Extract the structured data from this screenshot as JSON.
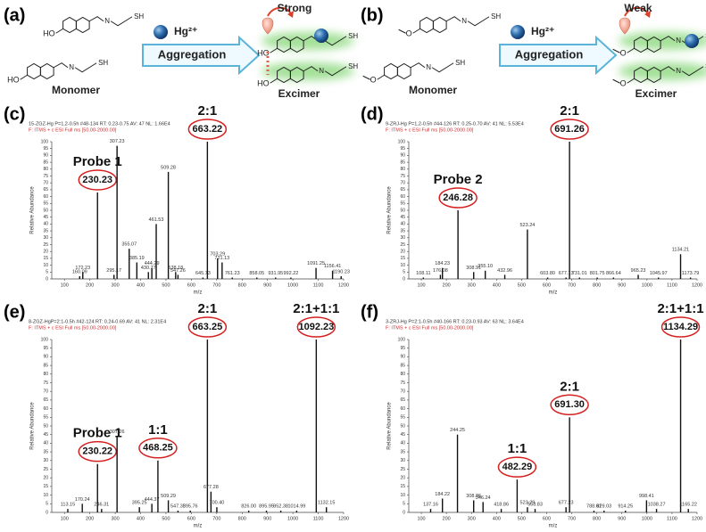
{
  "schemes": [
    {
      "label": "(a)",
      "substituent": "HO",
      "imine": "N",
      "thiol": "SH",
      "reagent": "Hg²⁺",
      "process": "Aggregation",
      "left": "Monomer",
      "right": "Excimer",
      "strength": "Strong"
    },
    {
      "label": "(b)",
      "substituent": "O",
      "imine": "N",
      "thiol": "SH",
      "reagent": "Hg²⁺",
      "process": "Aggregation",
      "left": "Monomer",
      "right": "Excimer",
      "strength": "Weak"
    }
  ],
  "chart_data": [
    {
      "type": "bar",
      "panel": "(c)",
      "header": [
        "15-ZGZ-Hg P=1,2-0.5h #48-134  RT: 0.23-0.75  AV: 47  NL: 1.66E4",
        "F: ITMS + c ESI Full ms [50.00-2000.00]"
      ],
      "x_label": "m/z",
      "y_label": "Relative Abundance",
      "color": "#111111",
      "highlight_color": "#d62020",
      "x": [
        160.09,
        172.23,
        230.23,
        295.17,
        307.23,
        355.07,
        385.19,
        430.77,
        444.29,
        461.53,
        509.28,
        538.18,
        547.26,
        645.73,
        663.22,
        703.29,
        721.13,
        761.23,
        858.05,
        931.95,
        992.22,
        1091.25,
        1156.41,
        1190.23
      ],
      "x_labels": [
        "160.09",
        "172.23",
        "230.23",
        "295.17",
        "307.23",
        "355.07",
        "385.19",
        "430.77",
        "444.29",
        "461.53",
        "509.28",
        "538.18",
        "547.26",
        "645.73",
        "663.22",
        "703.29",
        "721.13",
        "761.23",
        "858.05",
        "931.95",
        "992.22",
        "1091.25",
        "1156.41",
        "1190.23"
      ],
      "values": [
        2,
        5,
        63,
        3,
        97,
        22,
        12,
        5,
        8,
        40,
        78,
        5,
        3,
        1,
        100,
        15,
        12,
        1,
        1,
        1,
        1,
        8,
        6,
        2
      ],
      "notes": [
        null,
        null,
        "Probe 1",
        null,
        null,
        null,
        null,
        null,
        null,
        null,
        null,
        null,
        null,
        null,
        "2:1",
        null,
        null,
        null,
        null,
        null,
        null,
        null,
        null,
        null
      ],
      "xlim": [
        50,
        1200
      ],
      "ylim": [
        0,
        100
      ],
      "xticks": [
        100,
        200,
        300,
        400,
        500,
        600,
        700,
        800,
        900,
        1000,
        1100,
        1200
      ],
      "yticks": [
        0,
        5,
        10,
        15,
        20,
        25,
        30,
        35,
        40,
        45,
        50,
        55,
        60,
        65,
        70,
        75,
        80,
        85,
        90,
        95,
        100
      ]
    },
    {
      "type": "bar",
      "panel": "(d)",
      "header": [
        "9-ZRJ-Hg P=1,2-0.5h #44-126  RT: 0.25-0.70  AV: 41  NL: 5.53E4",
        "F: ITMS + c ESI Full ms [50.00-2000.00]"
      ],
      "x_label": "m/z",
      "y_label": "Relative Abundance",
      "color": "#111111",
      "highlight_color": "#d62020",
      "x": [
        108.11,
        176.08,
        184.23,
        246.28,
        308.91,
        355.1,
        432.96,
        523.24,
        603.8,
        677.13,
        691.26,
        731.01,
        801.75,
        866.64,
        965.23,
        1045.97,
        1134.21,
        1173.79
      ],
      "x_labels": [
        "108.11",
        "176.08",
        "184.23",
        "246.28",
        "308.91",
        "355.10",
        "432.96",
        "523.24",
        "603.80",
        "677.13",
        "691.26",
        "731.01",
        "801.75",
        "866.64",
        "965.23",
        "1045.97",
        "1134.21",
        "1173.79"
      ],
      "values": [
        1,
        3,
        8,
        50,
        5,
        6,
        3,
        36,
        1,
        1,
        100,
        1,
        1,
        1,
        3,
        1,
        18,
        1
      ],
      "notes": [
        null,
        null,
        null,
        "Probe 2",
        null,
        null,
        null,
        null,
        null,
        null,
        "2:1",
        null,
        null,
        null,
        null,
        null,
        null,
        null
      ],
      "xlim": [
        50,
        1200
      ],
      "ylim": [
        0,
        100
      ],
      "xticks": [
        100,
        200,
        300,
        400,
        500,
        600,
        700,
        800,
        900,
        1000,
        1100,
        1200
      ],
      "yticks": [
        0,
        5,
        10,
        15,
        20,
        25,
        30,
        35,
        40,
        45,
        50,
        55,
        60,
        65,
        70,
        75,
        80,
        85,
        90,
        95,
        100
      ]
    },
    {
      "type": "bar",
      "panel": "(e)",
      "header": [
        "8-ZGZ-HgP=2:1-0.5h #42-124  RT: 0.24-0.69  AV: 41  NL: 2.31E4",
        "F: ITMS + c ESI Full ms [50.00-2000.00]"
      ],
      "x_label": "m/z",
      "y_label": "Relative Abundance",
      "color": "#111111",
      "highlight_color": "#d62020",
      "x": [
        113.15,
        170.24,
        230.22,
        246.31,
        307.26,
        395.25,
        444.37,
        468.25,
        509.29,
        547.33,
        595.76,
        663.25,
        677.28,
        700.4,
        826,
        895.95,
        952.38,
        1014.99,
        1092.23,
        1132.15
      ],
      "x_labels": [
        "113.15",
        "170.24",
        "230.22",
        "246.31",
        "307.26",
        "395.25",
        "444.37",
        "468.25",
        "509.29",
        "547.33",
        "595.76",
        "663.25",
        "677.28",
        "700.40",
        "826.00",
        "895.95",
        "952.38",
        "1014.99",
        "1092.23",
        "1132.15"
      ],
      "values": [
        2,
        5,
        28,
        2,
        44,
        3,
        5,
        30,
        7,
        1,
        1,
        100,
        12,
        3,
        1,
        1,
        1,
        1,
        100,
        3
      ],
      "notes": [
        null,
        null,
        "Probe 1",
        null,
        null,
        null,
        null,
        "1:1",
        null,
        null,
        null,
        "2:1",
        null,
        null,
        null,
        null,
        null,
        null,
        "2:1+1:1",
        null
      ],
      "xlim": [
        50,
        1200
      ],
      "ylim": [
        0,
        100
      ],
      "xticks": [
        100,
        200,
        300,
        400,
        500,
        600,
        700,
        800,
        900,
        1000,
        1100,
        1200
      ],
      "yticks": [
        0,
        5,
        10,
        15,
        20,
        25,
        30,
        35,
        40,
        45,
        50,
        55,
        60,
        65,
        70,
        75,
        80,
        85,
        90,
        95,
        100
      ]
    },
    {
      "type": "bar",
      "panel": "(f)",
      "header": [
        "3-ZRJ-Hg P=2:1-0.5h #40-166  RT: 0.23-0.93  AV: 63  NL: 3.64E4",
        "F: ITMS + c ESI Full ms [50.00-2000.00]"
      ],
      "x_label": "m/z",
      "y_label": "Relative Abundance",
      "color": "#111111",
      "highlight_color": "#d62020",
      "x": [
        137.16,
        184.22,
        244.25,
        308.86,
        346.24,
        418.86,
        482.29,
        523.29,
        553.83,
        677.23,
        691.3,
        788.61,
        829.03,
        914.25,
        998.41,
        1038.27,
        1134.29,
        1165.22
      ],
      "x_labels": [
        "137.16",
        "184.22",
        "244.25",
        "308.86",
        "346.24",
        "418.86",
        "482.29",
        "523.29",
        "553.83",
        "677.23",
        "691.30",
        "788.61",
        "829.03",
        "914.25",
        "998.41",
        "1038.27",
        "1134.29",
        "1165.22"
      ],
      "values": [
        2,
        8,
        45,
        7,
        6,
        2,
        19,
        3,
        2,
        3,
        55,
        1,
        1,
        1,
        7,
        2,
        100,
        2
      ],
      "notes": [
        null,
        null,
        null,
        null,
        null,
        null,
        "1:1",
        null,
        null,
        null,
        "2:1",
        null,
        null,
        null,
        null,
        null,
        "2:1+1:1",
        null
      ],
      "xlim": [
        50,
        1200
      ],
      "ylim": [
        0,
        100
      ],
      "xticks": [
        100,
        200,
        300,
        400,
        500,
        600,
        700,
        800,
        900,
        1000,
        1100,
        1200
      ],
      "yticks": [
        0,
        5,
        10,
        15,
        20,
        25,
        30,
        35,
        40,
        45,
        50,
        55,
        60,
        65,
        70,
        75,
        80,
        85,
        90,
        95,
        100
      ]
    }
  ]
}
